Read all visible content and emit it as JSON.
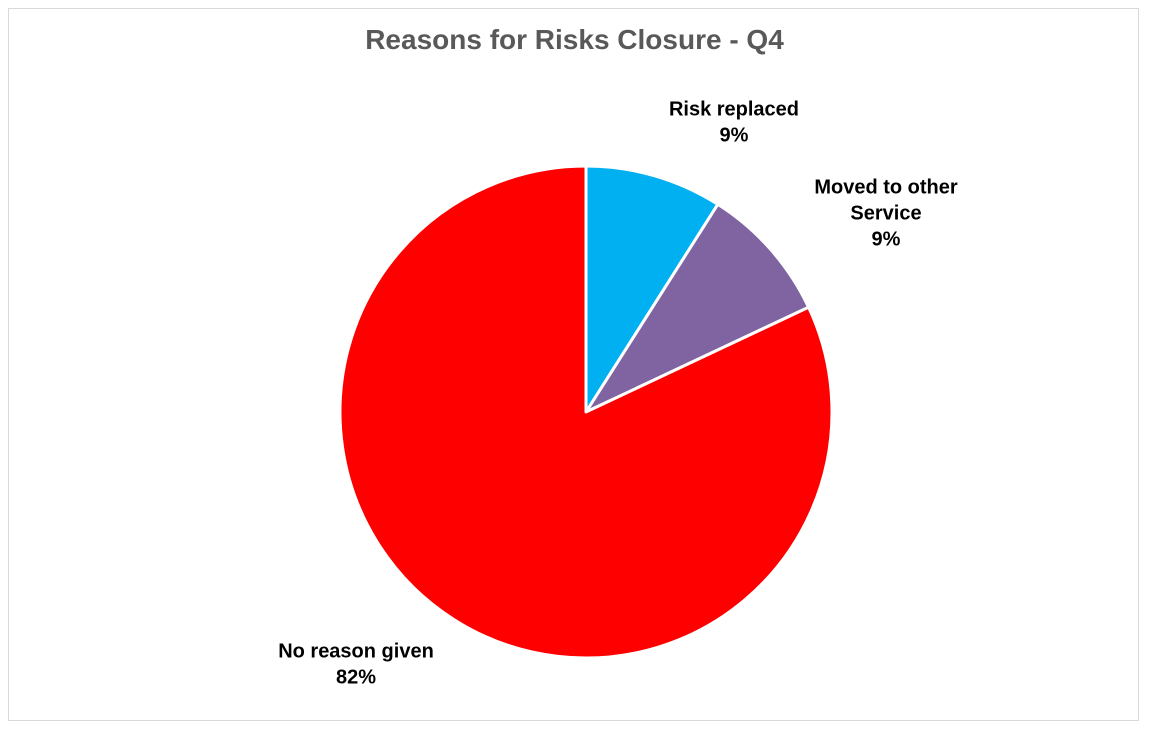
{
  "chart_data": {
    "type": "pie",
    "title": "Reasons for Risks Closure - Q4",
    "series": [
      {
        "slices": [
          {
            "label": "Risk replaced",
            "value": 9,
            "value_label": "9%",
            "color": "#00B0F0",
            "label_lines": [
              "Risk replaced",
              "9%"
            ]
          },
          {
            "label": "Moved to other Service",
            "value": 9,
            "value_label": "9%",
            "color": "#8064A2",
            "label_lines": [
              "Moved to other",
              "Service",
              "9%"
            ]
          },
          {
            "label": "No reason given",
            "value": 82,
            "value_label": "82%",
            "color": "#FF0000",
            "label_lines": [
              "No reason given",
              "82%"
            ]
          }
        ]
      }
    ],
    "start_angle": "12 o'clock",
    "direction": "clockwise",
    "legend": "none"
  }
}
